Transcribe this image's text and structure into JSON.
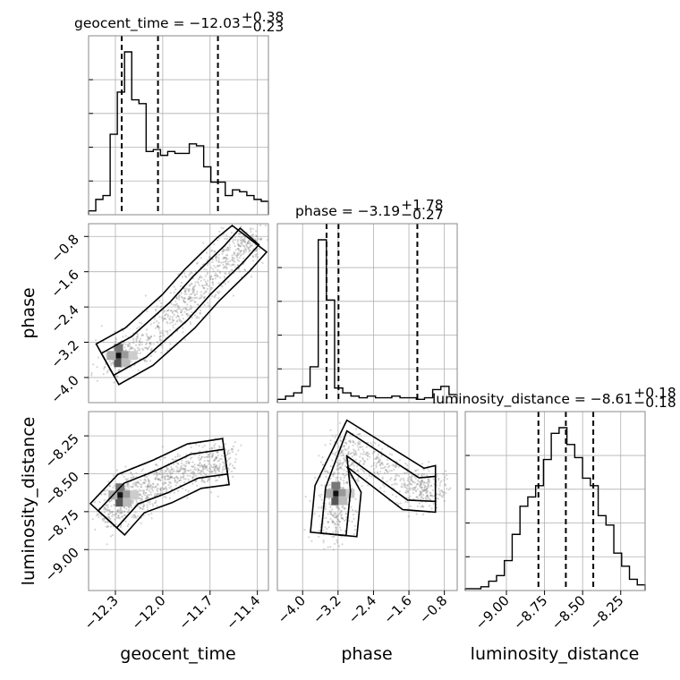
{
  "chart_data": {
    "type": "corner",
    "grid": true,
    "parameters": [
      {
        "name": "geocent_time",
        "median": "-12.03",
        "plus": "+0.38",
        "minus": "−0.23",
        "range": [
          -12.47,
          -11.33
        ],
        "ticks": [
          -12.3,
          -12.0,
          -11.7,
          -11.4
        ],
        "tick_labels": [
          "−12.3",
          "−12.0",
          "−11.7",
          "−11.4"
        ],
        "quantiles": [
          -12.26,
          -12.03,
          -11.65
        ]
      },
      {
        "name": "phase",
        "median": "-3.19",
        "plus": "+1.78",
        "minus": "−0.27",
        "range": [
          -4.57,
          -0.51
        ],
        "ticks": [
          -4.0,
          -3.2,
          -2.4,
          -1.6,
          -0.8
        ],
        "tick_labels": [
          "−4.0",
          "−3.2",
          "−2.4",
          "−1.6",
          "−0.8"
        ],
        "quantiles": [
          -3.46,
          -3.19,
          -1.41
        ]
      },
      {
        "name": "luminosity_distance",
        "median": "-8.61",
        "plus": "+0.18",
        "minus": "−0.18",
        "range": [
          -9.27,
          -8.09
        ],
        "ticks": [
          -9.0,
          -8.75,
          -8.5,
          -8.25
        ],
        "tick_labels": [
          "−9.00",
          "−8.75",
          "−8.50",
          "−8.25"
        ],
        "quantiles": [
          -8.79,
          -8.61,
          -8.43
        ]
      }
    ],
    "titles": [
      {
        "label": "geocent_time = −12.03",
        "sup": "+0.38",
        "sub": "−0.23"
      },
      {
        "label": "phase = −3.19",
        "sup": "+1.78",
        "sub": "−0.27"
      },
      {
        "label": "luminosity_distance = −8.61",
        "sup": "+0.18",
        "sub": "−0.18"
      }
    ],
    "histograms": [
      {
        "param": "geocent_time",
        "counts": [
          2,
          8,
          10,
          42,
          64,
          85,
          60,
          58,
          33,
          34,
          31,
          33,
          32,
          32,
          37,
          36,
          25,
          17,
          17,
          10,
          13,
          12,
          10,
          8,
          7
        ]
      },
      {
        "param": "phase",
        "counts": [
          2,
          4,
          6,
          10,
          22,
          100,
          63,
          9,
          6,
          4,
          3,
          4,
          3,
          3,
          4,
          3,
          3,
          2,
          3,
          8,
          10,
          5
        ]
      },
      {
        "param": "luminosity_distance",
        "counts": [
          1,
          1,
          2,
          5,
          8,
          16,
          30,
          45,
          50,
          56,
          70,
          84,
          87,
          78,
          71,
          60,
          56,
          40,
          35,
          20,
          13,
          6,
          3
        ]
      }
    ],
    "contours_2d": [
      {
        "x": "geocent_time",
        "y": "phase",
        "ridge": [
          [
            -12.35,
            -3.7
          ],
          [
            -12.15,
            -3.3
          ],
          [
            -11.9,
            -2.5
          ],
          [
            -11.75,
            -1.9
          ],
          [
            -11.55,
            -1.2
          ],
          [
            -11.45,
            -0.8
          ]
        ],
        "peak": [
          -12.28,
          -3.5
        ]
      },
      {
        "x": "geocent_time",
        "y": "luminosity_distance",
        "ridge": [
          [
            -12.35,
            -8.8
          ],
          [
            -12.2,
            -8.63
          ],
          [
            -12.0,
            -8.55
          ],
          [
            -11.8,
            -8.45
          ],
          [
            -11.6,
            -8.42
          ]
        ],
        "peak": [
          -12.27,
          -8.64
        ]
      },
      {
        "x": "phase",
        "y": "luminosity_distance",
        "ridge": [
          [
            -3.3,
            -8.9
          ],
          [
            -3.2,
            -8.6
          ],
          [
            -3.0,
            -8.3
          ],
          [
            -1.5,
            -8.6
          ],
          [
            -1.0,
            -8.6
          ]
        ],
        "peak": [
          -3.25,
          -8.63
        ]
      }
    ],
    "axis_labels": {
      "x": [
        "geocent_time",
        "phase",
        "luminosity_distance"
      ],
      "y": [
        "phase",
        "luminosity_distance"
      ]
    }
  },
  "colors": {
    "hist": "#000000",
    "contour": "#000000",
    "scatter": "#888888",
    "grid": "#b0b0b0"
  }
}
